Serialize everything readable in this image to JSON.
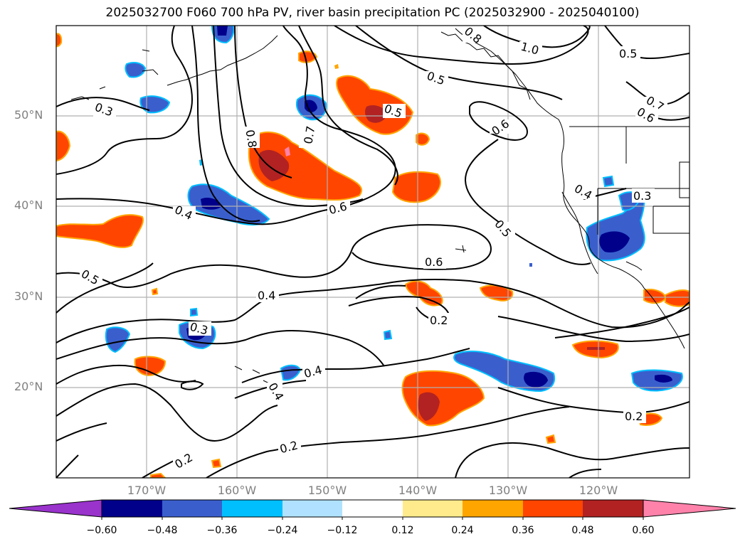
{
  "title": "2025032700 F060 700 hPa PV, river basin precipitation PC (2025032900 - 2025040100)",
  "lat_labels": [
    "50°N",
    "40°N",
    "30°N",
    "20°N"
  ],
  "lon_labels": [
    "170°W",
    "160°W",
    "150°W",
    "140°W",
    "130°W",
    "120°W"
  ],
  "colorbar": {
    "colors": [
      "#9933cc",
      "#00008b",
      "#3a5fcd",
      "#00bfff",
      "#b0e2ff",
      "#ffffff",
      "#ffeb8c",
      "#ffa500",
      "#ff4500",
      "#b22222",
      "#ff82ab"
    ],
    "tick_labels": [
      "−0.60",
      "−0.48",
      "−0.36",
      "−0.24",
      "−0.12",
      "0.12",
      "0.24",
      "0.36",
      "0.48",
      "0.60"
    ]
  },
  "contour_labels": [
    "0.3",
    "0.8",
    "0.7",
    "0.5",
    "0.4",
    "0.6",
    "0.5",
    "0.6",
    "1.0",
    "0.5",
    "0.7",
    "0.6",
    "0.8",
    "0.4",
    "0.3",
    "0.5",
    "0.5",
    "0.6",
    "0.4",
    "0.2",
    "0.3",
    "0.4",
    "0.4",
    "0.2",
    "0.2",
    "0.2"
  ]
}
